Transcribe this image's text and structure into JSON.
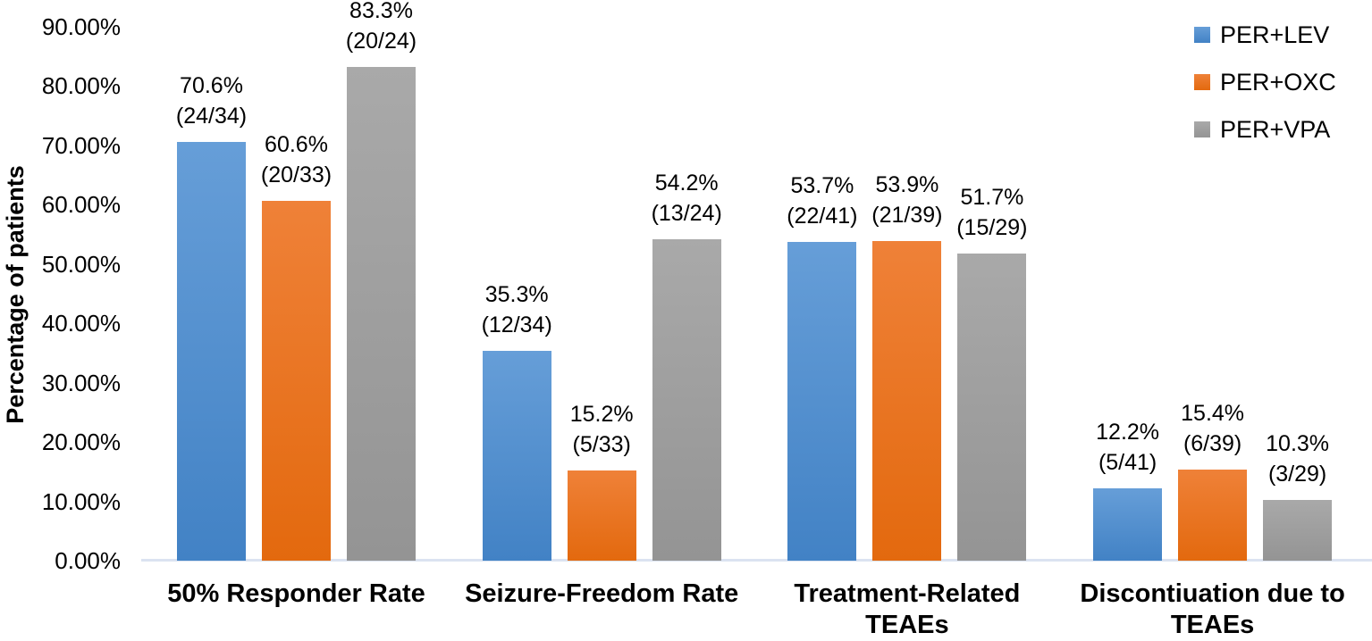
{
  "chart_data": {
    "type": "bar",
    "title": "",
    "xlabel": "",
    "ylabel": "Percentage of patients",
    "ylim": [
      0,
      90
    ],
    "grid": false,
    "legend_position": "top-right",
    "background_color": "#FFFFFF",
    "axis_line_color": "#DBE3F1",
    "text_color": "#000000",
    "categories": [
      "50% Responder Rate",
      "Seizure-Freedom Rate",
      "Treatment-Related TEAEs",
      "Discontiuation due to\nTEAEs"
    ],
    "y_ticks": [
      {
        "value": 0,
        "label": "0.00%"
      },
      {
        "value": 10,
        "label": "10.00%"
      },
      {
        "value": 20,
        "label": "20.00%"
      },
      {
        "value": 30,
        "label": "30.00%"
      },
      {
        "value": 40,
        "label": "40.00%"
      },
      {
        "value": 50,
        "label": "50.00%"
      },
      {
        "value": 60,
        "label": "60.00%"
      },
      {
        "value": 70,
        "label": "70.00%"
      },
      {
        "value": 80,
        "label": "80.00%"
      },
      {
        "value": 90,
        "label": "90.00%"
      }
    ],
    "series": [
      {
        "name": "PER+LEV",
        "swatch_color": "#5B9BD5",
        "color_top": "#669ED8",
        "color_bottom": "#4282C5",
        "values": [
          70.6,
          35.3,
          53.7,
          12.2
        ],
        "pct_labels": [
          "70.6%",
          "35.3%",
          "53.7%",
          "12.2%"
        ],
        "count_labels": [
          "(24/34)",
          "(12/34)",
          "(22/41)",
          "(5/41)"
        ]
      },
      {
        "name": "PER+OXC",
        "swatch_color": "#ED7D31",
        "color_top": "#EF8138",
        "color_bottom": "#E3690E",
        "values": [
          60.6,
          15.2,
          53.9,
          15.4
        ],
        "pct_labels": [
          "60.6%",
          "15.2%",
          "53.9%",
          "15.4%"
        ],
        "count_labels": [
          "(20/33)",
          "(5/33)",
          "(21/39)",
          "(6/39)"
        ]
      },
      {
        "name": "PER+VPA",
        "swatch_color": "#A5A5A5",
        "color_top": "#A9A9A9",
        "color_bottom": "#949494",
        "values": [
          83.3,
          54.2,
          51.7,
          10.3
        ],
        "pct_labels": [
          "83.3%",
          "54.2%",
          "51.7%",
          "10.3%"
        ],
        "count_labels": [
          "(20/24)",
          "(13/24)",
          "(15/29)",
          "(3/29)"
        ]
      }
    ]
  }
}
